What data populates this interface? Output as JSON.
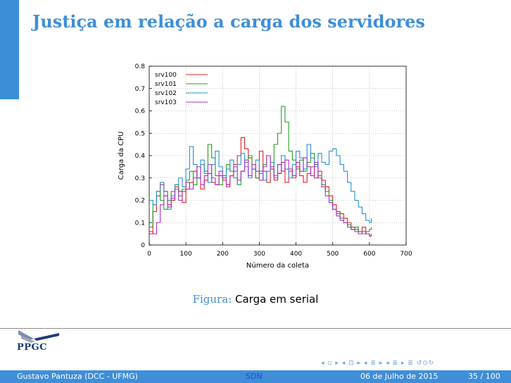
{
  "slide": {
    "title": "Justiça em relação a carga dos servidores",
    "caption_label": "Figura:",
    "caption_text": "Carga em serial"
  },
  "logo": {
    "text": "PPGC"
  },
  "footer": {
    "author": "Gustavo Pantuza (DCC - UFMG)",
    "short_title": "SDN",
    "date": "06 de Julho de 2015",
    "page": "35 / 100"
  },
  "colors": {
    "accent": "#3f8ed8",
    "footer_bg": "#3f8ed8"
  },
  "navigation_icons": [
    "nav-first-icon",
    "nav-section-icon",
    "nav-subsection-icon",
    "nav-frame-icon",
    "nav-search-icon"
  ],
  "chart_data": {
    "type": "line",
    "title": "",
    "xlabel": "Número da coleta",
    "ylabel": "Carga da CPU",
    "xlim": [
      0,
      700
    ],
    "ylim": [
      0,
      0.8
    ],
    "xticks": [
      0,
      100,
      200,
      300,
      400,
      500,
      600,
      700
    ],
    "yticks": [
      0,
      0.1,
      0.2,
      0.3,
      0.4,
      0.5,
      0.6,
      0.7,
      0.8
    ],
    "grid": true,
    "legend_position": "top-left",
    "series": [
      {
        "name": "srv100",
        "color": "#e0201e",
        "x": [
          0,
          10,
          20,
          30,
          40,
          50,
          60,
          70,
          80,
          90,
          100,
          110,
          120,
          130,
          140,
          150,
          160,
          170,
          180,
          190,
          200,
          210,
          220,
          230,
          240,
          250,
          260,
          270,
          280,
          290,
          300,
          310,
          320,
          330,
          340,
          350,
          360,
          370,
          380,
          390,
          400,
          410,
          420,
          430,
          440,
          450,
          460,
          470,
          480,
          490,
          500,
          510,
          520,
          530,
          540,
          550,
          560,
          570,
          580,
          590,
          600,
          605
        ],
        "values": [
          0.05,
          0.15,
          0.22,
          0.27,
          0.24,
          0.18,
          0.2,
          0.26,
          0.24,
          0.19,
          0.25,
          0.28,
          0.33,
          0.3,
          0.25,
          0.29,
          0.32,
          0.28,
          0.27,
          0.31,
          0.29,
          0.27,
          0.31,
          0.36,
          0.4,
          0.48,
          0.43,
          0.39,
          0.34,
          0.3,
          0.42,
          0.33,
          0.28,
          0.35,
          0.29,
          0.32,
          0.37,
          0.28,
          0.33,
          0.3,
          0.35,
          0.31,
          0.28,
          0.32,
          0.35,
          0.3,
          0.33,
          0.29,
          0.26,
          0.22,
          0.18,
          0.15,
          0.14,
          0.12,
          0.1,
          0.08,
          0.07,
          0.06,
          0.08,
          0.05,
          0.04,
          0.05
        ]
      },
      {
        "name": "srv101",
        "color": "#22a022",
        "x": [
          0,
          10,
          20,
          30,
          40,
          50,
          60,
          70,
          80,
          90,
          100,
          110,
          120,
          130,
          140,
          150,
          160,
          170,
          180,
          190,
          200,
          210,
          220,
          230,
          240,
          250,
          260,
          270,
          280,
          290,
          300,
          310,
          320,
          330,
          340,
          350,
          360,
          370,
          380,
          390,
          400,
          410,
          420,
          430,
          440,
          450,
          460,
          470,
          480,
          490,
          500,
          510,
          520,
          530,
          540,
          550,
          560,
          570,
          580,
          590,
          600,
          605
        ],
        "values": [
          0.08,
          0.18,
          0.24,
          0.2,
          0.16,
          0.2,
          0.24,
          0.27,
          0.22,
          0.25,
          0.29,
          0.33,
          0.27,
          0.3,
          0.36,
          0.33,
          0.45,
          0.39,
          0.31,
          0.27,
          0.31,
          0.36,
          0.33,
          0.3,
          0.27,
          0.33,
          0.37,
          0.4,
          0.34,
          0.3,
          0.33,
          0.36,
          0.4,
          0.34,
          0.45,
          0.5,
          0.62,
          0.55,
          0.42,
          0.38,
          0.34,
          0.38,
          0.33,
          0.37,
          0.41,
          0.36,
          0.31,
          0.27,
          0.24,
          0.2,
          0.16,
          0.14,
          0.12,
          0.1,
          0.09,
          0.07,
          0.08,
          0.06,
          0.05,
          0.06,
          0.07,
          0.08
        ]
      },
      {
        "name": "srv102",
        "color": "#2a8fd4",
        "x": [
          0,
          10,
          20,
          30,
          40,
          50,
          60,
          70,
          80,
          90,
          100,
          110,
          120,
          130,
          140,
          150,
          160,
          170,
          180,
          190,
          200,
          210,
          220,
          230,
          240,
          250,
          260,
          270,
          280,
          290,
          300,
          310,
          320,
          330,
          340,
          350,
          360,
          370,
          380,
          390,
          400,
          410,
          420,
          430,
          440,
          450,
          460,
          470,
          480,
          490,
          500,
          510,
          520,
          530,
          540,
          550,
          560,
          570,
          580,
          590,
          600,
          605
        ],
        "values": [
          0.2,
          0.18,
          0.24,
          0.28,
          0.22,
          0.16,
          0.22,
          0.27,
          0.3,
          0.26,
          0.34,
          0.44,
          0.36,
          0.3,
          0.38,
          0.32,
          0.28,
          0.36,
          0.42,
          0.35,
          0.3,
          0.34,
          0.38,
          0.33,
          0.36,
          0.41,
          0.35,
          0.3,
          0.34,
          0.38,
          0.32,
          0.29,
          0.33,
          0.37,
          0.31,
          0.36,
          0.4,
          0.34,
          0.3,
          0.36,
          0.42,
          0.39,
          0.34,
          0.45,
          0.39,
          0.35,
          0.41,
          0.37,
          0.36,
          0.42,
          0.43,
          0.4,
          0.36,
          0.33,
          0.28,
          0.24,
          0.2,
          0.17,
          0.14,
          0.11,
          0.1,
          0.12
        ]
      },
      {
        "name": "srv103",
        "color": "#b02ac4",
        "x": [
          0,
          10,
          20,
          30,
          40,
          50,
          60,
          70,
          80,
          90,
          100,
          110,
          120,
          130,
          140,
          150,
          160,
          170,
          180,
          190,
          200,
          210,
          220,
          230,
          240,
          250,
          260,
          270,
          280,
          290,
          300,
          310,
          320,
          330,
          340,
          350,
          360,
          370,
          380,
          390,
          400,
          410,
          420,
          430,
          440,
          450,
          460,
          470,
          480,
          490,
          500,
          510,
          520,
          530,
          540,
          550,
          560,
          570,
          580,
          590,
          600,
          605
        ],
        "values": [
          0.06,
          0.05,
          0.1,
          0.18,
          0.22,
          0.17,
          0.21,
          0.25,
          0.2,
          0.24,
          0.28,
          0.25,
          0.3,
          0.35,
          0.27,
          0.31,
          0.36,
          0.3,
          0.27,
          0.33,
          0.3,
          0.26,
          0.31,
          0.35,
          0.29,
          0.33,
          0.38,
          0.31,
          0.36,
          0.33,
          0.29,
          0.35,
          0.4,
          0.34,
          0.3,
          0.36,
          0.33,
          0.38,
          0.34,
          0.31,
          0.37,
          0.33,
          0.39,
          0.35,
          0.31,
          0.37,
          0.3,
          0.26,
          0.22,
          0.19,
          0.16,
          0.13,
          0.11,
          0.1,
          0.08,
          0.07,
          0.06,
          0.05,
          0.06,
          0.05,
          0.04,
          0.05
        ]
      }
    ]
  }
}
